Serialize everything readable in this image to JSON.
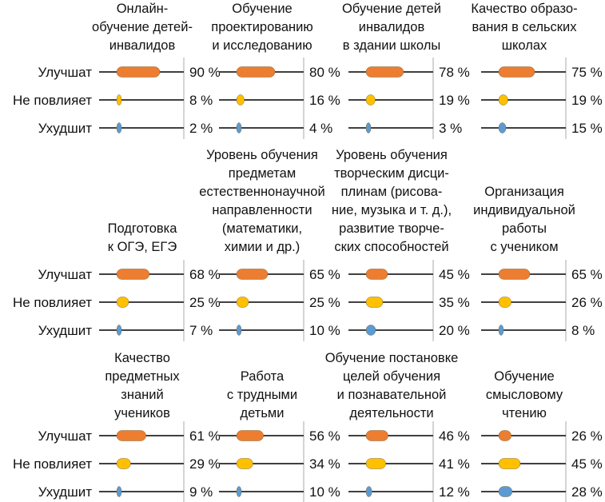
{
  "chart_data": {
    "type": "bar",
    "unit": "%",
    "row_labels": [
      "Улучшат",
      "Не повлияет",
      "Ухудшит"
    ],
    "series_colors": [
      "#ED7D31",
      "#FFC000",
      "#5B9BD5"
    ],
    "xlim": [
      0,
      100
    ],
    "grid": false,
    "panels": [
      {
        "title_lines": [
          "Онлайн-",
          "обучение детей-",
          "инвалидов"
        ],
        "values": [
          90,
          8,
          2
        ]
      },
      {
        "title_lines": [
          "Обучение",
          "проектированию",
          "и исследованию"
        ],
        "values": [
          80,
          16,
          4
        ]
      },
      {
        "title_lines": [
          "Обучение детей",
          "инвалидов",
          "в здании школы"
        ],
        "values": [
          78,
          19,
          3
        ]
      },
      {
        "title_lines": [
          "Качество образо-",
          "вания в сельских",
          "школах"
        ],
        "values": [
          75,
          19,
          15
        ]
      },
      {
        "title_lines": [
          "Подготовка",
          "к ОГЭ, ЕГЭ"
        ],
        "values": [
          68,
          25,
          7
        ]
      },
      {
        "title_lines": [
          "Уровень обучения",
          "предметам",
          "естественнонаучной",
          "направленности",
          "(математики,",
          "химии и др.)"
        ],
        "values": [
          65,
          25,
          10
        ]
      },
      {
        "title_lines": [
          "Уровень обучения",
          "творческим дисци-",
          "плинам (рисова-",
          "ние, музыка и т. д.),",
          "развитие творче-",
          "ских способностей"
        ],
        "values": [
          45,
          35,
          20
        ]
      },
      {
        "title_lines": [
          "Организация",
          "индивидуальной",
          "работы",
          "с учеником"
        ],
        "values": [
          65,
          26,
          8
        ]
      },
      {
        "title_lines": [
          "Качество",
          "предметных",
          "знаний",
          "учеников"
        ],
        "values": [
          61,
          29,
          9
        ]
      },
      {
        "title_lines": [
          "Работа",
          "с трудными",
          "детьми"
        ],
        "values": [
          56,
          34,
          10
        ]
      },
      {
        "title_lines": [
          "Обучение постановке",
          "целей обучения",
          "и познавательной",
          "деятельности"
        ],
        "values": [
          46,
          41,
          12
        ]
      },
      {
        "title_lines": [
          "Обучение",
          "смысловому",
          "чтению"
        ],
        "values": [
          26,
          45,
          28
        ]
      }
    ]
  }
}
